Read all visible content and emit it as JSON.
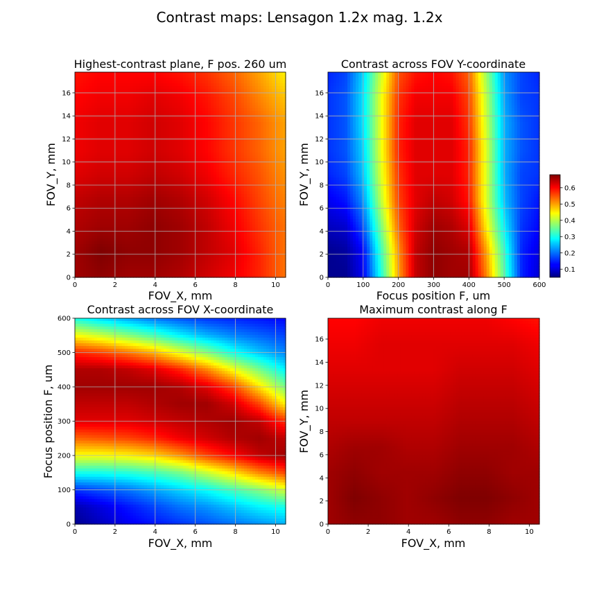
{
  "figure": {
    "suptitle": "Contrast maps: Lensagon 1.2x mag. 1.2x"
  },
  "chart_data": [
    {
      "type": "heatmap",
      "id": "p1",
      "title": "Highest-contrast plane, F pos. 260 um",
      "xlabel": "FOV_X, mm",
      "ylabel": "FOV_Y, mm",
      "xlim": [
        0,
        10.5
      ],
      "ylim": [
        0,
        17.8
      ],
      "xticks": [
        0,
        2,
        4,
        6,
        8,
        10
      ],
      "yticks": [
        0,
        2,
        4,
        6,
        8,
        10,
        12,
        14,
        16
      ],
      "grid": true,
      "colormap": "jet",
      "value_range": [
        0.05,
        0.68
      ],
      "z_rows_bottom_to_top": [
        [
          0.66,
          0.67,
          0.66,
          0.66,
          0.65,
          0.63,
          0.61,
          0.58,
          0.53
        ],
        [
          0.66,
          0.68,
          0.67,
          0.67,
          0.66,
          0.64,
          0.62,
          0.58,
          0.53
        ],
        [
          0.65,
          0.66,
          0.66,
          0.67,
          0.66,
          0.64,
          0.61,
          0.57,
          0.53
        ],
        [
          0.64,
          0.65,
          0.65,
          0.66,
          0.65,
          0.63,
          0.6,
          0.56,
          0.52
        ],
        [
          0.62,
          0.63,
          0.63,
          0.64,
          0.63,
          0.61,
          0.58,
          0.55,
          0.51
        ],
        [
          0.61,
          0.62,
          0.62,
          0.63,
          0.62,
          0.6,
          0.57,
          0.54,
          0.5
        ],
        [
          0.61,
          0.62,
          0.62,
          0.63,
          0.62,
          0.6,
          0.57,
          0.54,
          0.5
        ],
        [
          0.6,
          0.61,
          0.61,
          0.62,
          0.61,
          0.59,
          0.56,
          0.52,
          0.48
        ],
        [
          0.59,
          0.6,
          0.6,
          0.6,
          0.59,
          0.57,
          0.54,
          0.5,
          0.45
        ]
      ]
    },
    {
      "type": "heatmap",
      "id": "p2",
      "title": "Contrast across FOV Y-coordinate",
      "xlabel": "Focus position F, um",
      "ylabel": "FOV_Y, mm",
      "xlim": [
        0,
        600
      ],
      "ylim": [
        0,
        17.8
      ],
      "xticks": [
        0,
        100,
        200,
        300,
        400,
        500,
        600
      ],
      "yticks": [
        0,
        2,
        4,
        6,
        8,
        10,
        12,
        14,
        16
      ],
      "grid": true,
      "colormap": "jet",
      "value_range": [
        0.05,
        0.68
      ],
      "z_rows_bottom_to_top": [
        [
          0.06,
          0.06,
          0.12,
          0.3,
          0.5,
          0.64,
          0.67,
          0.66,
          0.66,
          0.52,
          0.34,
          0.15,
          0.1
        ],
        [
          0.06,
          0.07,
          0.13,
          0.32,
          0.51,
          0.64,
          0.67,
          0.66,
          0.65,
          0.5,
          0.32,
          0.15,
          0.11
        ],
        [
          0.09,
          0.1,
          0.18,
          0.36,
          0.54,
          0.63,
          0.66,
          0.65,
          0.62,
          0.45,
          0.28,
          0.16,
          0.13
        ],
        [
          0.12,
          0.14,
          0.22,
          0.4,
          0.56,
          0.62,
          0.64,
          0.63,
          0.59,
          0.42,
          0.25,
          0.17,
          0.14
        ],
        [
          0.15,
          0.17,
          0.25,
          0.42,
          0.57,
          0.62,
          0.62,
          0.62,
          0.58,
          0.42,
          0.24,
          0.17,
          0.16
        ],
        [
          0.16,
          0.18,
          0.26,
          0.43,
          0.58,
          0.62,
          0.62,
          0.62,
          0.58,
          0.42,
          0.24,
          0.18,
          0.16
        ],
        [
          0.16,
          0.18,
          0.27,
          0.43,
          0.58,
          0.62,
          0.62,
          0.62,
          0.57,
          0.41,
          0.24,
          0.18,
          0.16
        ],
        [
          0.16,
          0.18,
          0.27,
          0.43,
          0.57,
          0.61,
          0.61,
          0.61,
          0.56,
          0.4,
          0.23,
          0.17,
          0.16
        ],
        [
          0.15,
          0.17,
          0.26,
          0.41,
          0.55,
          0.59,
          0.6,
          0.59,
          0.54,
          0.38,
          0.22,
          0.17,
          0.15
        ]
      ]
    },
    {
      "type": "heatmap",
      "id": "p3",
      "title": "Contrast across FOV X-coordinate",
      "xlabel": "FOV_X, mm",
      "ylabel": "Focus position F, um",
      "xlim": [
        0,
        10.5
      ],
      "ylim": [
        0,
        600
      ],
      "xticks": [
        0,
        2,
        4,
        6,
        8,
        10
      ],
      "yticks": [
        0,
        100,
        200,
        300,
        400,
        500,
        600
      ],
      "grid": true,
      "colormap": "jet",
      "value_range": [
        0.05,
        0.68
      ],
      "z_rows_bottom_to_top": [
        [
          0.06,
          0.09,
          0.12,
          0.14,
          0.16,
          0.18,
          0.2,
          0.22,
          0.24
        ],
        [
          0.08,
          0.11,
          0.14,
          0.17,
          0.2,
          0.22,
          0.25,
          0.28,
          0.3
        ],
        [
          0.16,
          0.18,
          0.2,
          0.23,
          0.26,
          0.29,
          0.33,
          0.37,
          0.42
        ],
        [
          0.3,
          0.3,
          0.31,
          0.33,
          0.36,
          0.41,
          0.46,
          0.52,
          0.56
        ],
        [
          0.44,
          0.44,
          0.45,
          0.47,
          0.51,
          0.56,
          0.6,
          0.64,
          0.66
        ],
        [
          0.54,
          0.55,
          0.56,
          0.58,
          0.61,
          0.63,
          0.65,
          0.66,
          0.64
        ],
        [
          0.62,
          0.62,
          0.62,
          0.63,
          0.64,
          0.65,
          0.66,
          0.64,
          0.57
        ],
        [
          0.64,
          0.64,
          0.64,
          0.65,
          0.66,
          0.66,
          0.63,
          0.56,
          0.45
        ],
        [
          0.66,
          0.66,
          0.66,
          0.66,
          0.65,
          0.62,
          0.56,
          0.46,
          0.36
        ],
        [
          0.65,
          0.65,
          0.64,
          0.62,
          0.58,
          0.52,
          0.44,
          0.36,
          0.28
        ],
        [
          0.58,
          0.56,
          0.53,
          0.49,
          0.43,
          0.37,
          0.3,
          0.25,
          0.21
        ],
        [
          0.44,
          0.41,
          0.37,
          0.33,
          0.28,
          0.24,
          0.21,
          0.19,
          0.17
        ],
        [
          0.3,
          0.26,
          0.23,
          0.2,
          0.18,
          0.16,
          0.15,
          0.14,
          0.13
        ]
      ]
    },
    {
      "type": "heatmap",
      "id": "p4",
      "title": "Maximum contrast along F",
      "xlabel": "FOV_X, mm",
      "ylabel": "FOV_Y, mm",
      "xlim": [
        0,
        10.5
      ],
      "ylim": [
        0,
        17.8
      ],
      "xticks": [
        0,
        2,
        4,
        6,
        8,
        10
      ],
      "yticks": [
        0,
        2,
        4,
        6,
        8,
        10,
        12,
        14,
        16
      ],
      "grid": false,
      "colormap": "jet",
      "value_range": [
        0.05,
        0.68
      ],
      "z_rows_bottom_to_top": [
        [
          0.66,
          0.67,
          0.67,
          0.66,
          0.66,
          0.67,
          0.67,
          0.66,
          0.66
        ],
        [
          0.66,
          0.68,
          0.67,
          0.66,
          0.67,
          0.68,
          0.68,
          0.67,
          0.66
        ],
        [
          0.66,
          0.67,
          0.66,
          0.66,
          0.66,
          0.67,
          0.67,
          0.66,
          0.66
        ],
        [
          0.65,
          0.66,
          0.66,
          0.65,
          0.65,
          0.66,
          0.66,
          0.66,
          0.65
        ],
        [
          0.64,
          0.64,
          0.64,
          0.64,
          0.64,
          0.65,
          0.65,
          0.65,
          0.64
        ],
        [
          0.63,
          0.63,
          0.63,
          0.63,
          0.63,
          0.64,
          0.64,
          0.64,
          0.63
        ],
        [
          0.62,
          0.62,
          0.62,
          0.62,
          0.62,
          0.63,
          0.63,
          0.63,
          0.62
        ],
        [
          0.61,
          0.61,
          0.62,
          0.62,
          0.62,
          0.62,
          0.62,
          0.62,
          0.61
        ],
        [
          0.6,
          0.6,
          0.61,
          0.61,
          0.61,
          0.61,
          0.61,
          0.6,
          0.59
        ]
      ]
    }
  ],
  "colorbar": {
    "ticks": [
      0.1,
      0.2,
      0.3,
      0.4,
      0.5,
      0.6
    ],
    "range": [
      0.05,
      0.68
    ]
  }
}
